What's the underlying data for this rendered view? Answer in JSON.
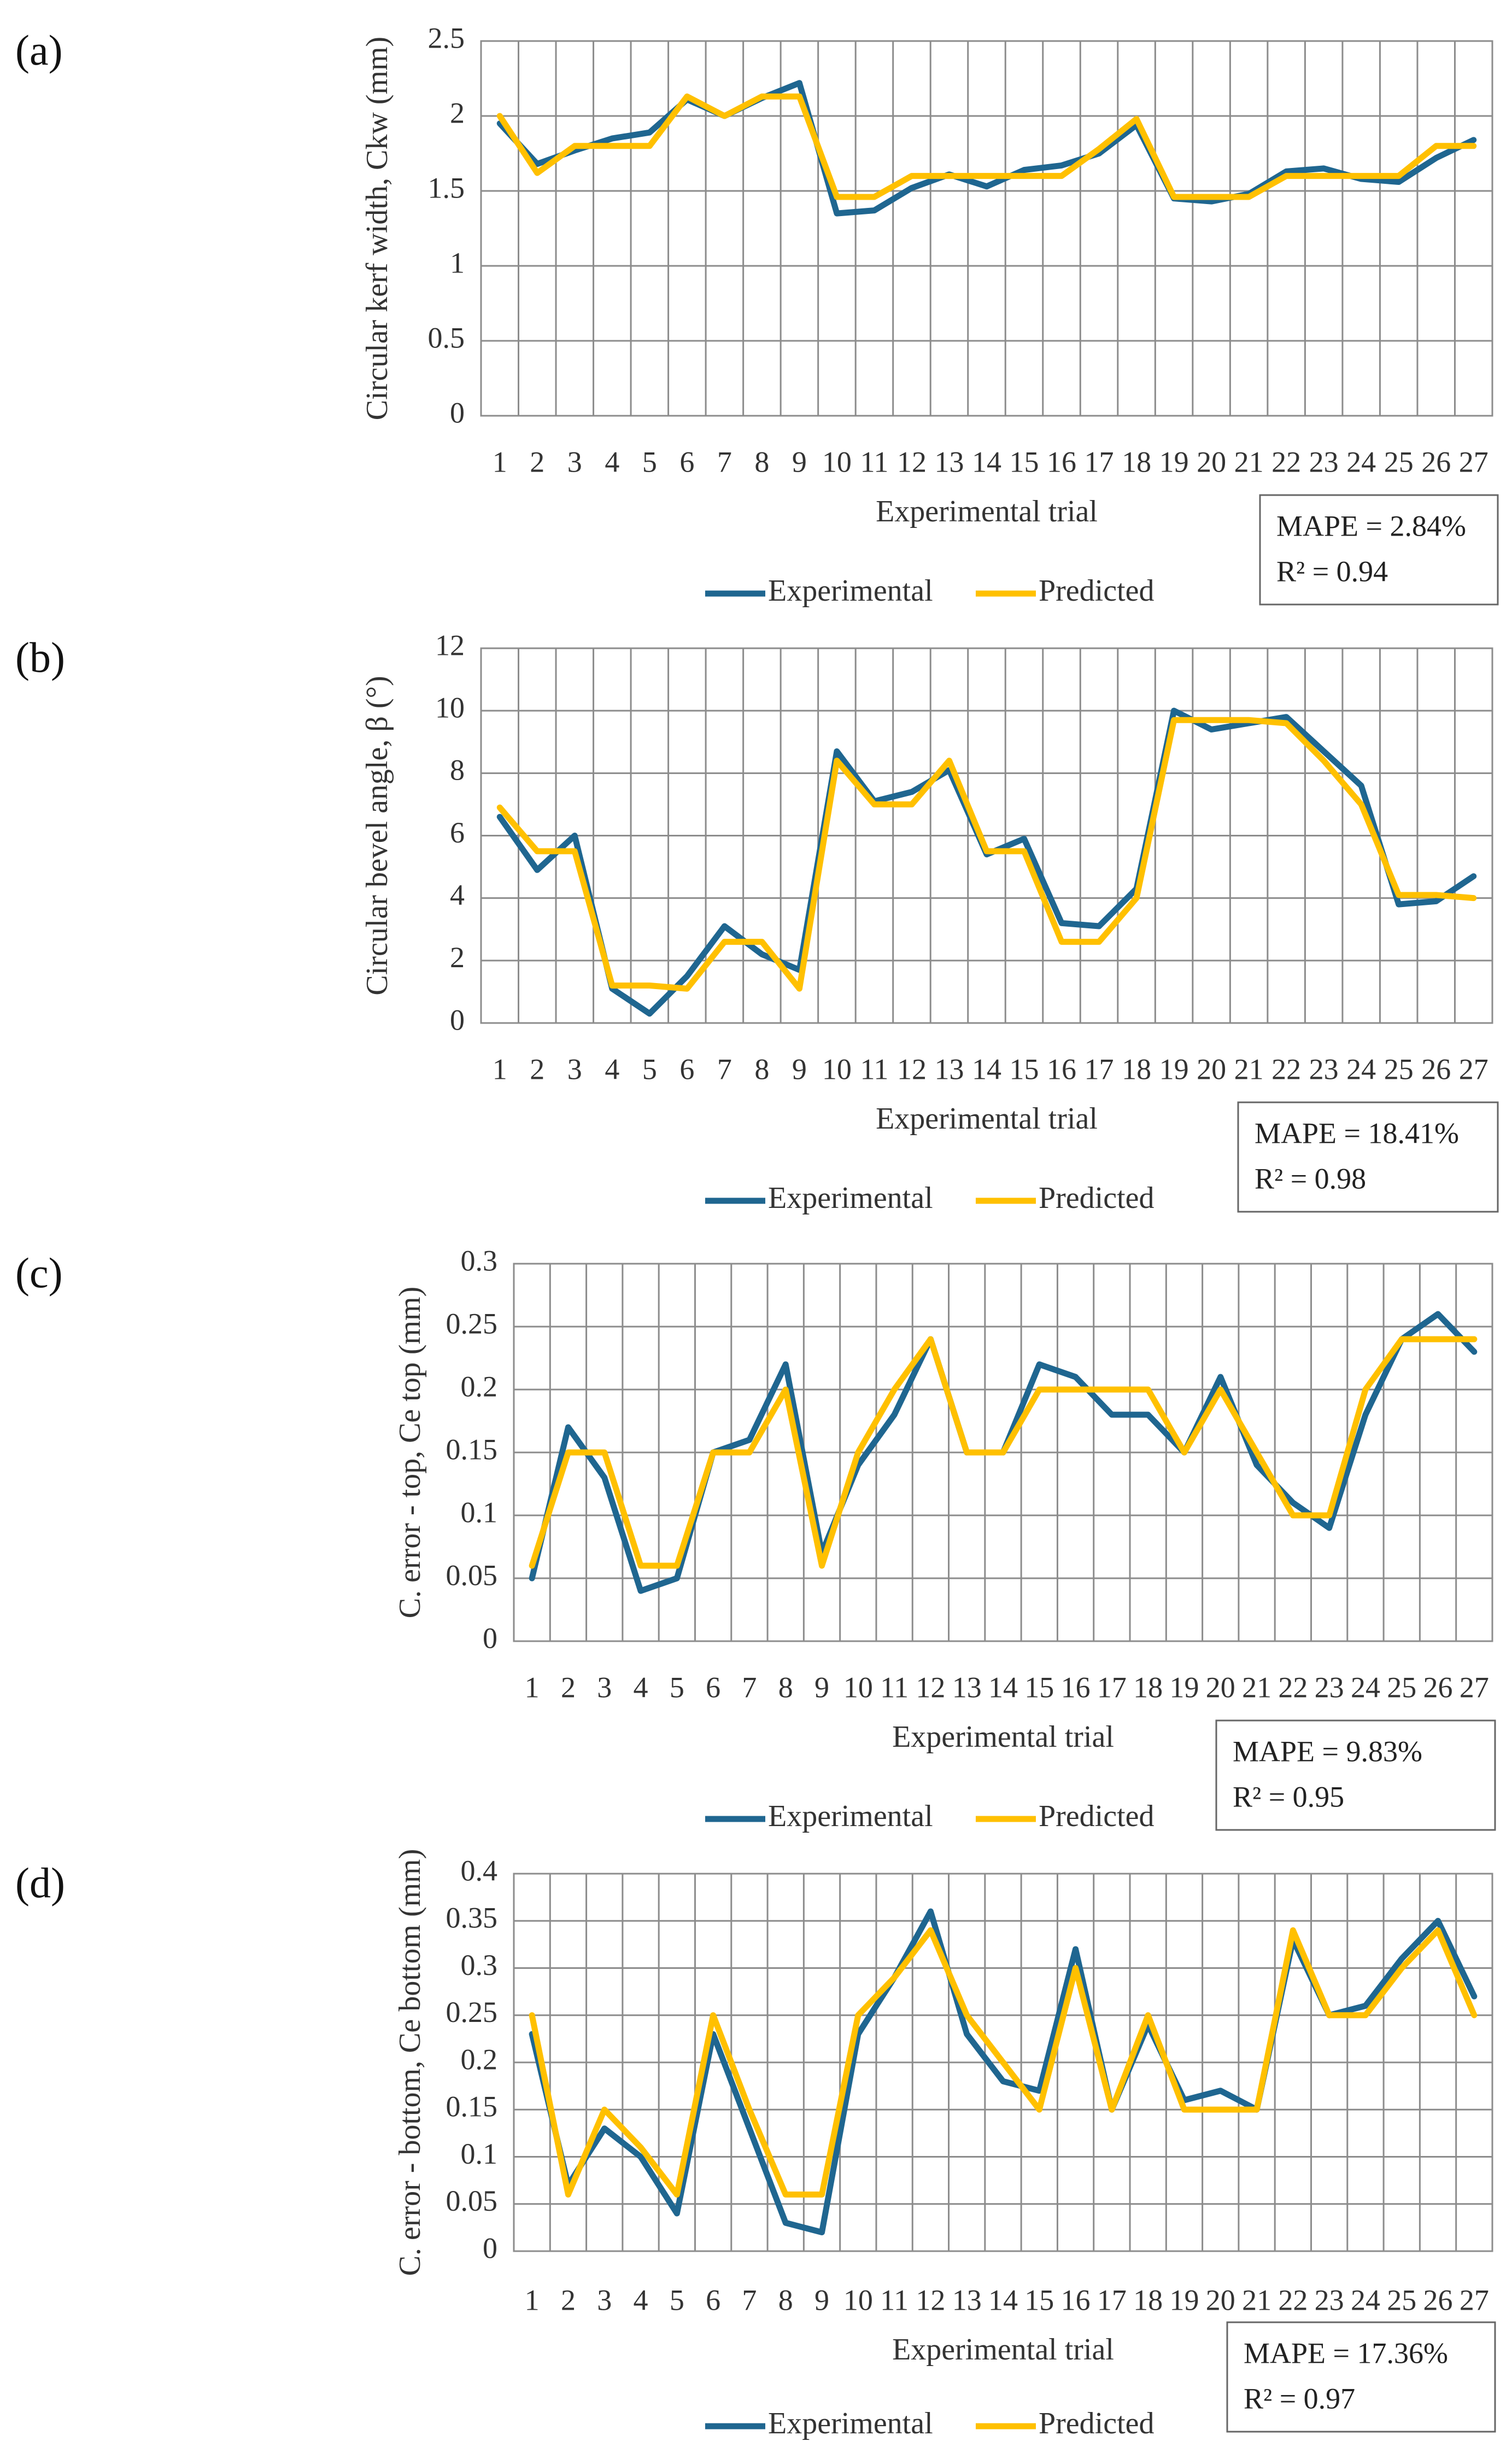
{
  "colors": {
    "experimental": "#1f6690",
    "predicted": "#ffc000"
  },
  "chart_data": [
    {
      "panel": "(a)",
      "type": "line",
      "xlabel": "Experimental trial",
      "ylabel": "Circular kerf width, Ckw (mm)",
      "ylim": [
        0,
        2.5
      ],
      "yticks": [
        "0",
        "0.5",
        "1",
        "1.5",
        "2",
        "2.5"
      ],
      "categories": [
        "1",
        "2",
        "3",
        "4",
        "5",
        "6",
        "7",
        "8",
        "9",
        "10",
        "11",
        "12",
        "13",
        "14",
        "15",
        "16",
        "17",
        "18",
        "19",
        "20",
        "21",
        "22",
        "23",
        "24",
        "25",
        "26",
        "27"
      ],
      "series": [
        {
          "name": "Experimental",
          "values": [
            1.95,
            1.68,
            1.77,
            1.85,
            1.89,
            2.11,
            2.0,
            2.12,
            2.22,
            1.35,
            1.37,
            1.52,
            1.61,
            1.53,
            1.64,
            1.67,
            1.75,
            1.94,
            1.45,
            1.43,
            1.48,
            1.63,
            1.65,
            1.58,
            1.56,
            1.72,
            1.84
          ]
        },
        {
          "name": "Predicted",
          "values": [
            2.0,
            1.62,
            1.8,
            1.8,
            1.8,
            2.13,
            2.0,
            2.13,
            2.13,
            1.46,
            1.46,
            1.6,
            1.6,
            1.6,
            1.6,
            1.6,
            1.78,
            1.98,
            1.46,
            1.46,
            1.46,
            1.6,
            1.6,
            1.6,
            1.6,
            1.8,
            1.8
          ]
        }
      ],
      "stats": {
        "mape": "MAPE = 2.84%",
        "r2": "R² = 0.94"
      }
    },
    {
      "panel": "(b)",
      "type": "line",
      "xlabel": "Experimental trial",
      "ylabel": "Circular bevel angle, β (°)",
      "ylim": [
        0,
        12
      ],
      "yticks": [
        "0",
        "2",
        "4",
        "6",
        "8",
        "10",
        "12"
      ],
      "categories": [
        "1",
        "2",
        "3",
        "4",
        "5",
        "6",
        "7",
        "8",
        "9",
        "10",
        "11",
        "12",
        "13",
        "14",
        "15",
        "16",
        "17",
        "18",
        "19",
        "20",
        "21",
        "22",
        "23",
        "24",
        "25",
        "26",
        "27"
      ],
      "series": [
        {
          "name": "Experimental",
          "values": [
            6.6,
            4.9,
            6.0,
            1.1,
            0.3,
            1.5,
            3.1,
            2.2,
            1.7,
            8.7,
            7.1,
            7.4,
            8.1,
            5.4,
            5.9,
            3.2,
            3.1,
            4.3,
            10.0,
            9.4,
            9.6,
            9.8,
            8.7,
            7.6,
            3.8,
            3.9,
            4.7
          ]
        },
        {
          "name": "Predicted",
          "values": [
            6.9,
            5.5,
            5.5,
            1.2,
            1.2,
            1.1,
            2.6,
            2.6,
            1.1,
            8.4,
            7.0,
            7.0,
            8.4,
            5.5,
            5.5,
            2.6,
            2.6,
            4.0,
            9.7,
            9.7,
            9.7,
            9.6,
            8.4,
            7.0,
            4.1,
            4.1,
            4.0
          ]
        }
      ],
      "stats": {
        "mape": "MAPE = 18.41%",
        "r2": "R² = 0.98"
      }
    },
    {
      "panel": "(c)",
      "type": "line",
      "xlabel": "Experimental trial",
      "ylabel": "C. error - top, Ce top (mm)",
      "ylim": [
        0,
        0.3
      ],
      "yticks": [
        "0",
        "0.05",
        "0.1",
        "0.15",
        "0.2",
        "0.25",
        "0.3"
      ],
      "categories": [
        "1",
        "2",
        "3",
        "4",
        "5",
        "6",
        "7",
        "8",
        "9",
        "10",
        "11",
        "12",
        "13",
        "14",
        "15",
        "16",
        "17",
        "18",
        "19",
        "20",
        "21",
        "22",
        "23",
        "24",
        "25",
        "26",
        "27"
      ],
      "series": [
        {
          "name": "Experimental",
          "values": [
            0.05,
            0.17,
            0.13,
            0.04,
            0.05,
            0.15,
            0.16,
            0.22,
            0.07,
            0.14,
            0.18,
            0.24,
            0.15,
            0.15,
            0.22,
            0.21,
            0.18,
            0.18,
            0.15,
            0.21,
            0.14,
            0.11,
            0.09,
            0.18,
            0.24,
            0.26,
            0.23
          ]
        },
        {
          "name": "Predicted",
          "values": [
            0.06,
            0.15,
            0.15,
            0.06,
            0.06,
            0.15,
            0.15,
            0.2,
            0.06,
            0.15,
            0.2,
            0.24,
            0.15,
            0.15,
            0.2,
            0.2,
            0.2,
            0.2,
            0.15,
            0.2,
            0.15,
            0.1,
            0.1,
            0.2,
            0.24,
            0.24,
            0.24
          ]
        }
      ],
      "stats": {
        "mape": "MAPE = 9.83%",
        "r2": "R² = 0.95"
      }
    },
    {
      "panel": "(d)",
      "type": "line",
      "xlabel": "Experimental trial",
      "ylabel": "C. error - bottom, Ce bottom (mm)",
      "ylim": [
        0,
        0.4
      ],
      "yticks": [
        "0",
        "0.05",
        "0.1",
        "0.15",
        "0.2",
        "0.25",
        "0.3",
        "0.35",
        "0.4"
      ],
      "categories": [
        "1",
        "2",
        "3",
        "4",
        "5",
        "6",
        "7",
        "8",
        "9",
        "10",
        "11",
        "12",
        "13",
        "14",
        "15",
        "16",
        "17",
        "18",
        "19",
        "20",
        "21",
        "22",
        "23",
        "24",
        "25",
        "26",
        "27"
      ],
      "series": [
        {
          "name": "Experimental",
          "values": [
            0.23,
            0.07,
            0.13,
            0.1,
            0.04,
            0.23,
            0.13,
            0.03,
            0.02,
            0.23,
            0.29,
            0.36,
            0.23,
            0.18,
            0.17,
            0.32,
            0.15,
            0.24,
            0.16,
            0.17,
            0.15,
            0.33,
            0.25,
            0.26,
            0.31,
            0.35,
            0.27
          ]
        },
        {
          "name": "Predicted",
          "values": [
            0.25,
            0.06,
            0.15,
            0.11,
            0.06,
            0.25,
            0.15,
            0.06,
            0.06,
            0.25,
            0.29,
            0.34,
            0.25,
            0.2,
            0.15,
            0.3,
            0.15,
            0.25,
            0.15,
            0.15,
            0.15,
            0.34,
            0.25,
            0.25,
            0.3,
            0.34,
            0.25
          ]
        }
      ],
      "stats": {
        "mape": "MAPE = 17.36%",
        "r2": "R² = 0.97"
      }
    }
  ]
}
